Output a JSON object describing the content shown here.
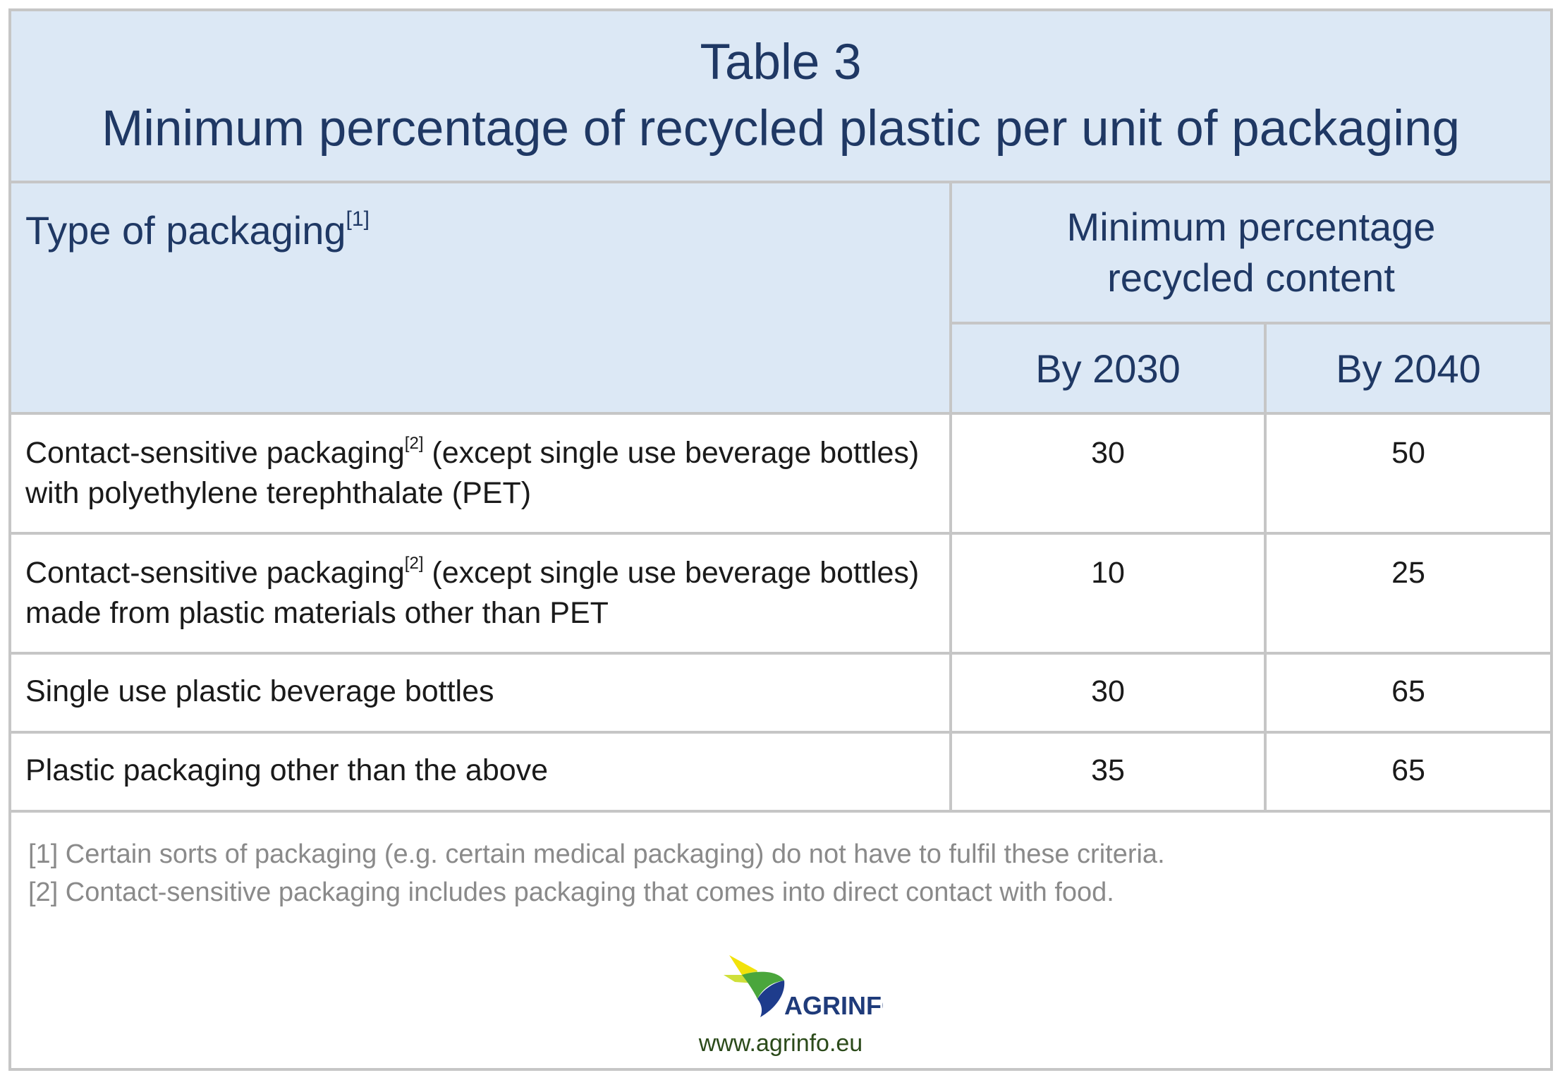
{
  "table": {
    "title_line1": "Table 3",
    "title_line2": "Minimum percentage of recycled plastic per unit of packaging",
    "col_type_header": "Type of packaging",
    "col_type_footnote": "[1]",
    "col_min_line1": "Minimum percentage",
    "col_min_line2": "recycled content",
    "col_2030": "By 2030",
    "col_2040": "By 2040",
    "rows": [
      {
        "label_part1": "Contact-sensitive packaging",
        "label_footnote": "[2]",
        "label_part2": " (except single use beverage bottles)",
        "label_line2": "with polyethylene terephthalate (PET)",
        "by_2030": "30",
        "by_2040": "50"
      },
      {
        "label_part1": "Contact-sensitive packaging",
        "label_footnote": "[2]",
        "label_part2": " (except single use beverage bottles)",
        "label_line2": "made from plastic materials other than PET",
        "by_2030": "10",
        "by_2040": "25"
      },
      {
        "label": "Single use plastic beverage bottles",
        "by_2030": "30",
        "by_2040": "65"
      },
      {
        "label": "Plastic packaging other than the above",
        "by_2030": "35",
        "by_2040": "65"
      }
    ]
  },
  "footnotes": [
    "[1] Certain sorts of packaging (e.g. certain medical packaging) do not have to fulfil these criteria.",
    "[2] Contact-sensitive packaging includes packaging that comes into direct contact with food."
  ],
  "logo": {
    "text": "AGRINFO",
    "icon": "agrinfo-logo-icon",
    "colors": {
      "yellow": "#f2e20a",
      "green": "#4aa63c",
      "blue": "#1e3c8c",
      "text": "#1f3b7a"
    }
  },
  "website": "www.agrinfo.eu",
  "colors": {
    "header_bg": "#dce8f5",
    "header_text": "#1f3864",
    "border": "#c6c6c6",
    "footnote_text": "#8a8a8a"
  }
}
